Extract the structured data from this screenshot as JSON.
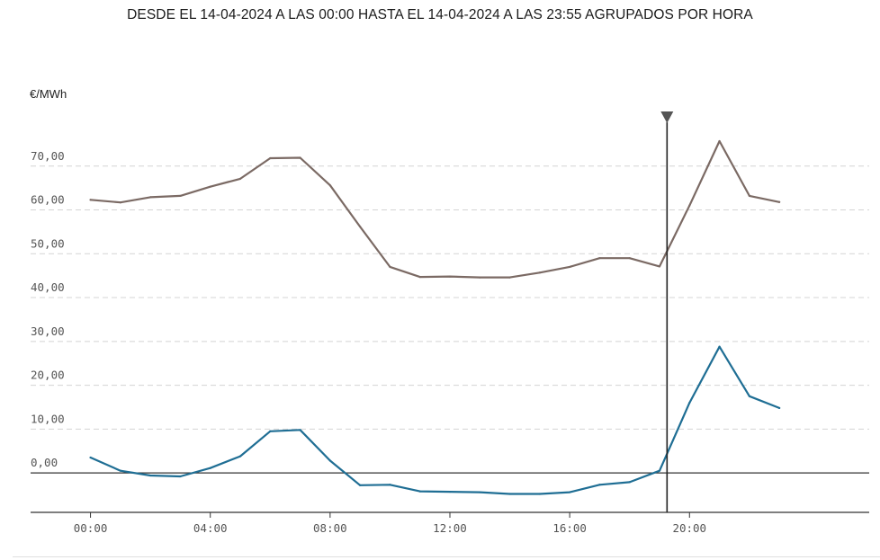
{
  "chart_data": {
    "type": "line",
    "title": "DESDE EL 14-04-2024 A LAS 00:00 HASTA EL 14-04-2024 A LAS 23:55 AGRUPADOS POR HORA",
    "ylabel": "€/MWh",
    "xlabel": "",
    "ylim": [
      -9,
      80
    ],
    "xlim": [
      -2,
      26
    ],
    "grid": true,
    "y_ticks": [
      0,
      10,
      20,
      30,
      40,
      50,
      60,
      70
    ],
    "y_tick_labels": [
      "0,00",
      "10,00",
      "20,00",
      "30,00",
      "40,00",
      "50,00",
      "60,00",
      "70,00"
    ],
    "x_ticks": [
      0,
      4,
      8,
      12,
      16,
      20
    ],
    "x_tick_labels": [
      "00:00",
      "04:00",
      "08:00",
      "12:00",
      "16:00",
      "20:00"
    ],
    "marker_hour": 19.25,
    "x": [
      0,
      1,
      2,
      3,
      4,
      5,
      6,
      7,
      8,
      9,
      10,
      11,
      12,
      13,
      14,
      15,
      16,
      17,
      18,
      19,
      20,
      21,
      22,
      23
    ],
    "series": [
      {
        "color": "#7b6a64",
        "values": [
          62.3,
          61.7,
          62.9,
          63.2,
          65.3,
          67.1,
          71.8,
          71.9,
          65.6,
          56.2,
          47.0,
          44.7,
          44.8,
          44.6,
          44.6,
          45.7,
          47.0,
          49.0,
          49.0,
          47.1,
          61.0,
          75.7,
          63.2,
          61.8
        ]
      },
      {
        "color": "#1f6e94",
        "values": [
          3.5,
          0.5,
          -0.6,
          -0.8,
          1.1,
          3.8,
          9.5,
          9.8,
          2.8,
          -2.8,
          -2.7,
          -4.2,
          -4.3,
          -4.4,
          -4.8,
          -4.8,
          -4.4,
          -2.7,
          -2.1,
          0.5,
          16.0,
          28.8,
          17.5,
          14.8
        ]
      }
    ]
  }
}
